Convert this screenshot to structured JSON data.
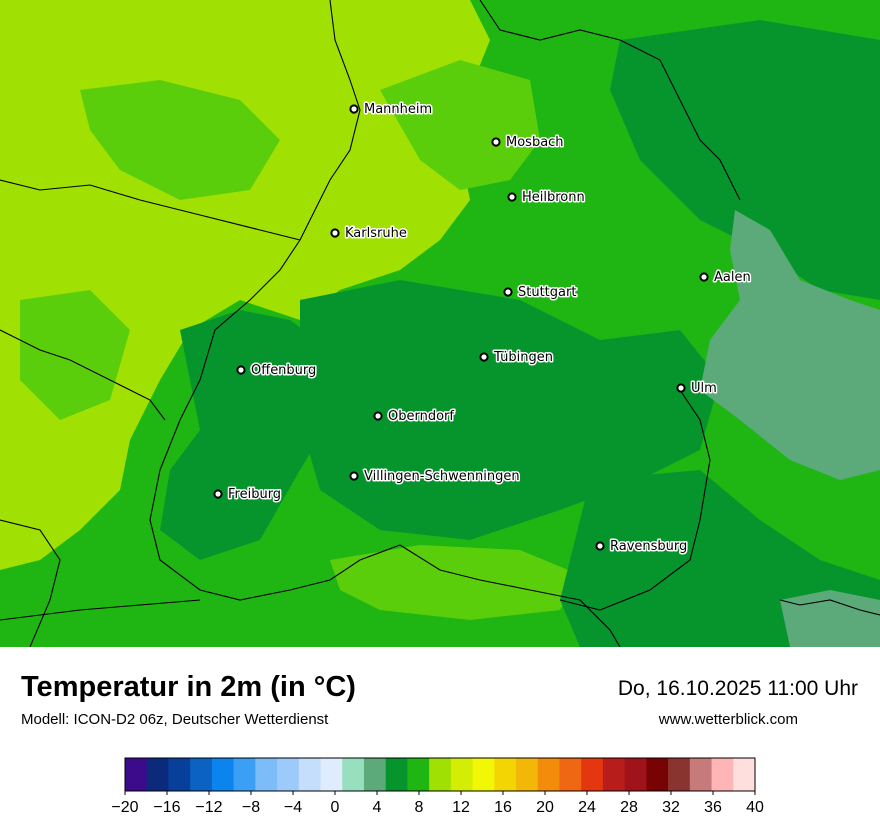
{
  "map": {
    "colors": {
      "base_mild": "#1fb614",
      "warmer": "#a0e003",
      "warm_mid": "#5bce0c",
      "cool": "#06952d",
      "cooler": "#5ca97a",
      "border": "#000000",
      "marker": "#000000",
      "marker_fill": "#ffffff"
    },
    "cities": [
      {
        "name": "Mannheim"
      },
      {
        "name": "Mosbach"
      },
      {
        "name": "Heilbronn"
      },
      {
        "name": "Karlsruhe"
      },
      {
        "name": "Aalen"
      },
      {
        "name": "Stuttgart"
      },
      {
        "name": "Tübingen"
      },
      {
        "name": "Offenburg"
      },
      {
        "name": "Ulm"
      },
      {
        "name": "Oberndorf"
      },
      {
        "name": "Villingen-Schwenningen"
      },
      {
        "name": "Freiburg"
      },
      {
        "name": "Ravensburg"
      }
    ]
  },
  "header": {
    "title": "Temperatur in 2m (in °C)",
    "subtitle": "Modell: ICON-D2 06z, Deutscher Wetterdienst",
    "datetime": "Do, 16.10.2025 11:00 Uhr",
    "website": "www.wetterblick.com"
  },
  "legend": {
    "ticks": [
      "−20",
      "−16",
      "−12",
      "−8",
      "−4",
      "0",
      "4",
      "8",
      "12",
      "16",
      "20",
      "24",
      "28",
      "32",
      "36",
      "40"
    ],
    "colors": [
      "#3c0b8c",
      "#0b2a7a",
      "#06409b",
      "#0b62c2",
      "#0b84ee",
      "#3b9ff5",
      "#7bbcf9",
      "#9ccafb",
      "#c4defb",
      "#deecfd",
      "#97dfbe",
      "#5ca97a",
      "#06952d",
      "#1fb614",
      "#a0e003",
      "#d3ee04",
      "#f1f704",
      "#f3d503",
      "#f3b807",
      "#f28c0a",
      "#ef6613",
      "#e43710",
      "#b71d1a",
      "#a1131a",
      "#780304",
      "#8a3430",
      "#c77a7a",
      "#ffb5b5",
      "#ffdede"
    ]
  }
}
